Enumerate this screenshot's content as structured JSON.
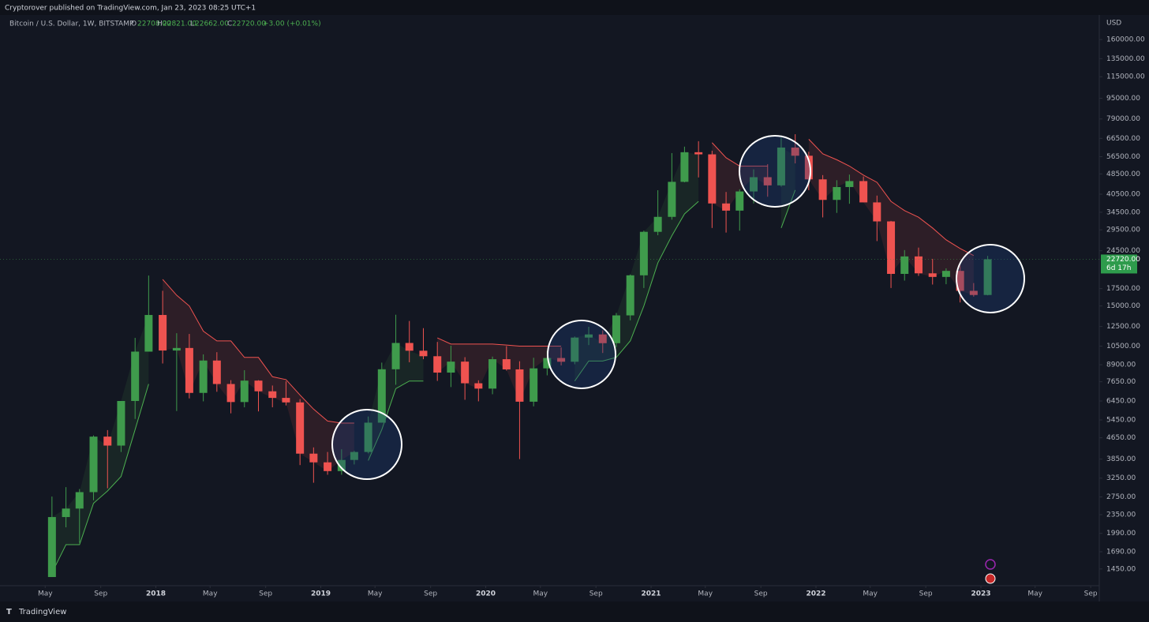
{
  "header": {
    "publisher": "Cryptorover published on TradingView.com, Jan 23, 2023 08:25 UTC+1"
  },
  "legend": {
    "symbol": "Bitcoin / U.S. Dollar, 1W, BITSTAMP",
    "o_label": "O",
    "open": "22708.00",
    "h_label": "H",
    "high": "22821.00",
    "l_label": "L",
    "low": "22662.00",
    "c_label": "C",
    "close": "22720.00",
    "change": "+3.00 (+0.01%)"
  },
  "price_tag": {
    "price": "22720.00",
    "countdown": "6d 17h"
  },
  "footer": {
    "brand": "TradingView"
  },
  "chart_data": {
    "type": "candlestick",
    "y_axis_label": "USD",
    "log_scale": true,
    "up_color": "#3f9b4c",
    "down_color": "#ef5350",
    "trend_up_color": "#4caf50",
    "trend_down_color": "#ef5350",
    "x": [
      "2017-05",
      "2017-06",
      "2017-07",
      "2017-08",
      "2017-09",
      "2017-10",
      "2017-11",
      "2017-12",
      "2018-01",
      "2018-02",
      "2018-03",
      "2018-04",
      "2018-05",
      "2018-06",
      "2018-07",
      "2018-08",
      "2018-09",
      "2018-10",
      "2018-11",
      "2018-12",
      "2019-01",
      "2019-02",
      "2019-03",
      "2019-04",
      "2019-05",
      "2019-06",
      "2019-07",
      "2019-08",
      "2019-09",
      "2019-10",
      "2019-11",
      "2019-12",
      "2020-01",
      "2020-02",
      "2020-03",
      "2020-04",
      "2020-05",
      "2020-06",
      "2020-07",
      "2020-08",
      "2020-09",
      "2020-10",
      "2020-11",
      "2020-12",
      "2021-01",
      "2021-02",
      "2021-03",
      "2021-04",
      "2021-05",
      "2021-06",
      "2021-07",
      "2021-08",
      "2021-09",
      "2021-10",
      "2021-11",
      "2021-12",
      "2022-01",
      "2022-02",
      "2022-03",
      "2022-04",
      "2022-05",
      "2022-06",
      "2022-07",
      "2022-08",
      "2022-09",
      "2022-10",
      "2022-11",
      "2022-12",
      "2023-01"
    ],
    "open": [
      1350,
      2300,
      2480,
      2870,
      4700,
      4340,
      6450,
      10000,
      13850,
      10100,
      10330,
      6930,
      9240,
      7500,
      6390,
      7730,
      7030,
      6630,
      6370,
      4040,
      3740,
      3460,
      3820,
      4100,
      5320,
      8550,
      10800,
      10080,
      9600,
      8300,
      9150,
      7550,
      7200,
      9350,
      8540,
      6410,
      8620,
      9450,
      9140,
      11330,
      11650,
      10780,
      13800,
      19700,
      28990,
      33110,
      45200,
      58800,
      57700,
      37300,
      35000,
      41500,
      47100,
      43800,
      61300,
      57000,
      46200,
      38500,
      43160,
      45500,
      37650,
      31800,
      19950,
      23300,
      20050,
      19420,
      20490,
      17160,
      16540
    ],
    "high": [
      2760,
      3000,
      2950,
      4750,
      4980,
      6450,
      11300,
      19660,
      17170,
      11780,
      11700,
      9760,
      9950,
      7760,
      8480,
      7760,
      7400,
      7680,
      6560,
      4270,
      4100,
      4200,
      4140,
      5620,
      9070,
      13880,
      13130,
      12320,
      10900,
      10540,
      9520,
      7750,
      9570,
      10500,
      9180,
      9470,
      10070,
      10380,
      11440,
      12470,
      12080,
      14100,
      19850,
      29300,
      41950,
      58350,
      61780,
      64850,
      59600,
      41300,
      42300,
      50500,
      52900,
      66900,
      69000,
      59050,
      47990,
      45850,
      48200,
      47400,
      40000,
      31950,
      24650,
      25200,
      22800,
      20950,
      21450,
      18390,
      23400
    ],
    "low": [
      1350,
      2100,
      1830,
      2670,
      2970,
      4100,
      5500,
      10000,
      9000,
      5900,
      6600,
      6430,
      7000,
      5780,
      6100,
      5880,
      6100,
      6200,
      3650,
      3120,
      3350,
      3350,
      3670,
      4050,
      5320,
      7450,
      9100,
      9350,
      7710,
      7300,
      6520,
      6430,
      6850,
      8450,
      3850,
      6150,
      8100,
      8850,
      8940,
      10600,
      9880,
      10400,
      13200,
      17600,
      28130,
      32300,
      45000,
      47000,
      30000,
      28800,
      29300,
      37300,
      39600,
      43300,
      53250,
      41950,
      32950,
      34300,
      37200,
      37700,
      26700,
      17600,
      18800,
      19600,
      18150,
      18200,
      15480,
      16300,
      16490
    ],
    "close": [
      2300,
      2480,
      2870,
      4700,
      4340,
      6450,
      10000,
      13850,
      10100,
      10330,
      6930,
      9240,
      7500,
      6390,
      7730,
      7030,
      6630,
      6370,
      4040,
      3740,
      3460,
      3820,
      4100,
      5320,
      8550,
      10800,
      10080,
      9600,
      8300,
      9150,
      7550,
      7200,
      9350,
      8540,
      6410,
      8620,
      9450,
      9140,
      11330,
      11650,
      10780,
      13800,
      19700,
      28990,
      33110,
      45200,
      58800,
      57700,
      37300,
      35000,
      41500,
      47100,
      43800,
      61300,
      57000,
      46200,
      38500,
      43160,
      45500,
      37650,
      31800,
      19950,
      23300,
      20050,
      19420,
      20490,
      17160,
      16540,
      22720
    ],
    "trend_up": [
      1400,
      1800,
      1800,
      2600,
      2900,
      3300,
      5000,
      7500,
      null,
      null,
      null,
      null,
      null,
      null,
      null,
      null,
      null,
      null,
      null,
      null,
      null,
      null,
      null,
      3800,
      5000,
      7200,
      7700,
      7700,
      null,
      null,
      null,
      null,
      null,
      null,
      null,
      null,
      null,
      null,
      7700,
      9200,
      9200,
      9500,
      11000,
      15000,
      22000,
      28000,
      34000,
      38000,
      null,
      null,
      null,
      null,
      null,
      30000,
      42000,
      null,
      null,
      null,
      null,
      null,
      null,
      null,
      null,
      null,
      null,
      null,
      null,
      null,
      16000
    ],
    "trend_down": [
      null,
      null,
      null,
      null,
      null,
      null,
      null,
      null,
      19000,
      16500,
      15000,
      12000,
      11000,
      11000,
      9500,
      9500,
      8000,
      7800,
      6800,
      6000,
      5400,
      5300,
      5300,
      null,
      null,
      null,
      null,
      null,
      11300,
      10700,
      10700,
      10700,
      10700,
      10600,
      10500,
      10500,
      10500,
      10500,
      null,
      null,
      null,
      null,
      null,
      null,
      null,
      null,
      null,
      null,
      64000,
      56000,
      52000,
      52000,
      52000,
      null,
      null,
      66000,
      58000,
      55000,
      52000,
      48000,
      45000,
      38000,
      35000,
      33000,
      30000,
      27000,
      25000,
      23500,
      null
    ],
    "xlim": [
      "2017-01-21",
      "2023-09-20"
    ],
    "xticks": [
      {
        "value": "2017-05-01",
        "label": "May"
      },
      {
        "value": "2017-09-01",
        "label": "Sep"
      },
      {
        "value": "2018-01-01",
        "label": "2018"
      },
      {
        "value": "2018-05-01",
        "label": "May"
      },
      {
        "value": "2018-09-01",
        "label": "Sep"
      },
      {
        "value": "2019-01-01",
        "label": "2019"
      },
      {
        "value": "2019-05-01",
        "label": "May"
      },
      {
        "value": "2019-09-01",
        "label": "Sep"
      },
      {
        "value": "2020-01-01",
        "label": "2020"
      },
      {
        "value": "2020-05-01",
        "label": "May"
      },
      {
        "value": "2020-09-01",
        "label": "Sep"
      },
      {
        "value": "2021-01-01",
        "label": "2021"
      },
      {
        "value": "2021-05-01",
        "label": "May"
      },
      {
        "value": "2021-09-01",
        "label": "Sep"
      },
      {
        "value": "2022-01-01",
        "label": "2022"
      },
      {
        "value": "2022-05-01",
        "label": "May"
      },
      {
        "value": "2022-09-01",
        "label": "Sep"
      },
      {
        "value": "2023-01-01",
        "label": "2023"
      },
      {
        "value": "2023-05-01",
        "label": "May"
      },
      {
        "value": "2023-09-01",
        "label": "Sep"
      }
    ],
    "ylim": [
      1250,
      199000
    ],
    "yticks": [
      {
        "value": 1450,
        "label": "1450.00"
      },
      {
        "value": 1690,
        "label": "1690.00"
      },
      {
        "value": 1990,
        "label": "1990.00"
      },
      {
        "value": 2350,
        "label": "2350.00"
      },
      {
        "value": 2750,
        "label": "2750.00"
      },
      {
        "value": 3250,
        "label": "3250.00"
      },
      {
        "value": 3850,
        "label": "3850.00"
      },
      {
        "value": 4650,
        "label": "4650.00"
      },
      {
        "value": 5450,
        "label": "5450.00"
      },
      {
        "value": 6450,
        "label": "6450.00"
      },
      {
        "value": 7650,
        "label": "7650.00"
      },
      {
        "value": 8900,
        "label": "8900.00"
      },
      {
        "value": 10500,
        "label": "10500.00"
      },
      {
        "value": 12500,
        "label": "12500.00"
      },
      {
        "value": 15000,
        "label": "15000.00"
      },
      {
        "value": 17500,
        "label": "17500.00"
      },
      {
        "value": 24500,
        "label": "24500.00"
      },
      {
        "value": 29500,
        "label": "29500.00"
      },
      {
        "value": 34500,
        "label": "34500.00"
      },
      {
        "value": 40500,
        "label": "40500.00"
      },
      {
        "value": 48500,
        "label": "48500.00"
      },
      {
        "value": 56500,
        "label": "56500.00"
      },
      {
        "value": 66500,
        "label": "66500.00"
      },
      {
        "value": 79000,
        "label": "79000.00"
      },
      {
        "value": 95000,
        "label": "95000.00"
      },
      {
        "value": 115000,
        "label": "115000.00"
      },
      {
        "value": 135000,
        "label": "135000.00"
      },
      {
        "value": 160000,
        "label": "160000.00"
      }
    ]
  }
}
